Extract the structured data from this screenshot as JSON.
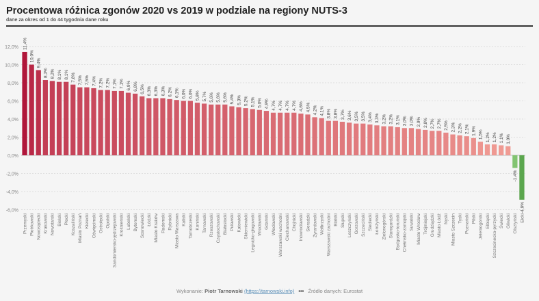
{
  "chart_data": {
    "type": "bar",
    "title": "Procentowa różnica zgonów 2020 vs 2019 w podziale na regiony NUTS-3",
    "subtitle": "dane za okres od 1 do 44 tygodnia dane roku",
    "xlabel": "",
    "ylabel": "",
    "ylim": [
      -7,
      13
    ],
    "yticks": [
      "12,0%",
      "10,0%",
      "8,0%",
      "6,0%",
      "4,0%",
      "2,0%",
      "0,0%",
      "-2,0%",
      "-4,0%",
      "-6,0%"
    ],
    "grid": true,
    "colors": {
      "positive_max": "#b0163a",
      "positive_min": "#f6a89c",
      "negative_min": "#92d07f",
      "negative_max": "#5ba64e"
    },
    "categories": [
      "Przemyski",
      "Piotrkowski",
      "Nowosądecki",
      "Krakowski",
      "Nowotarski",
      "Bielski",
      "Płocki",
      "Koszaliński",
      "Miasto Poznań",
      "Kielecki",
      "Oświęcimski",
      "Ostrołęcki",
      "Opolski",
      "Sandomiersko-jędrzejowski",
      "Krośnieński",
      "Lubelski",
      "Bytomski",
      "Sosnowiecki",
      "Łódzki",
      "Miasto Kraków",
      "Radomski",
      "Rybnicki",
      "Miasto Warszawa",
      "Kaliski",
      "Tarnobrzeski",
      "Koniński",
      "Tarnowski",
      "Rzeszowski",
      "Częstochowski",
      "Białostocki",
      "Puławski",
      "Katowicki",
      "Skierniewicki",
      "Legnicko-głogowski",
      "Wrocławski",
      "Gdański",
      "Włocławski",
      "Warszawski wschodni",
      "Ciechanowski",
      "Chojnicki",
      "Inowrocławski",
      "Sieradzki",
      "Żyrardowski",
      "Wałbrzyski",
      "Warszawski zachodni",
      "Bialski",
      "Słupski",
      "Leszczyński",
      "Gorzowski",
      "Szczeciński",
      "Siedlecki",
      "Łomżyński",
      "Zielonogórski",
      "Starogardzki",
      "Bydgosko-toruński",
      "Chełmsko-zamojski",
      "Suwalski",
      "Miasto Wrocław",
      "Trójmiejski",
      "Grudziądzki",
      "Miasto Łódź",
      "Nyski",
      "Miasto Szczecin",
      "Tyski",
      "Poznański",
      "Pilski",
      "Jeleniogórski",
      "Elbląski",
      "Szczecinecko-pyrzycki",
      "Świecki",
      "Gliwicki",
      "Olsztyński",
      "Ełcki"
    ],
    "values": [
      11.4,
      10.0,
      9.4,
      8.3,
      8.2,
      8.1,
      8.1,
      7.8,
      7.5,
      7.5,
      7.4,
      7.2,
      7.2,
      7.1,
      7.1,
      6.9,
      6.8,
      6.5,
      6.3,
      6.3,
      6.3,
      6.2,
      6.1,
      6.0,
      6.0,
      5.8,
      5.7,
      5.6,
      5.6,
      5.6,
      5.4,
      5.3,
      5.2,
      5.1,
      5.0,
      4.9,
      4.7,
      4.7,
      4.7,
      4.7,
      4.6,
      4.5,
      4.2,
      4.1,
      3.8,
      3.8,
      3.7,
      3.6,
      3.5,
      3.5,
      3.4,
      3.3,
      3.2,
      3.2,
      3.1,
      3.0,
      3.0,
      2.9,
      2.8,
      2.7,
      2.7,
      2.5,
      2.3,
      2.2,
      2.1,
      1.9,
      1.5,
      1.2,
      1.2,
      1.1,
      1.0,
      -1.4,
      -4.9
    ]
  },
  "footer": {
    "prefix": "Wykonanie:",
    "author": "Piotr Tarnowski",
    "link": "(https://tarnowski.info)",
    "dots": "•••",
    "source": "Źródło danych: Eurostat"
  }
}
